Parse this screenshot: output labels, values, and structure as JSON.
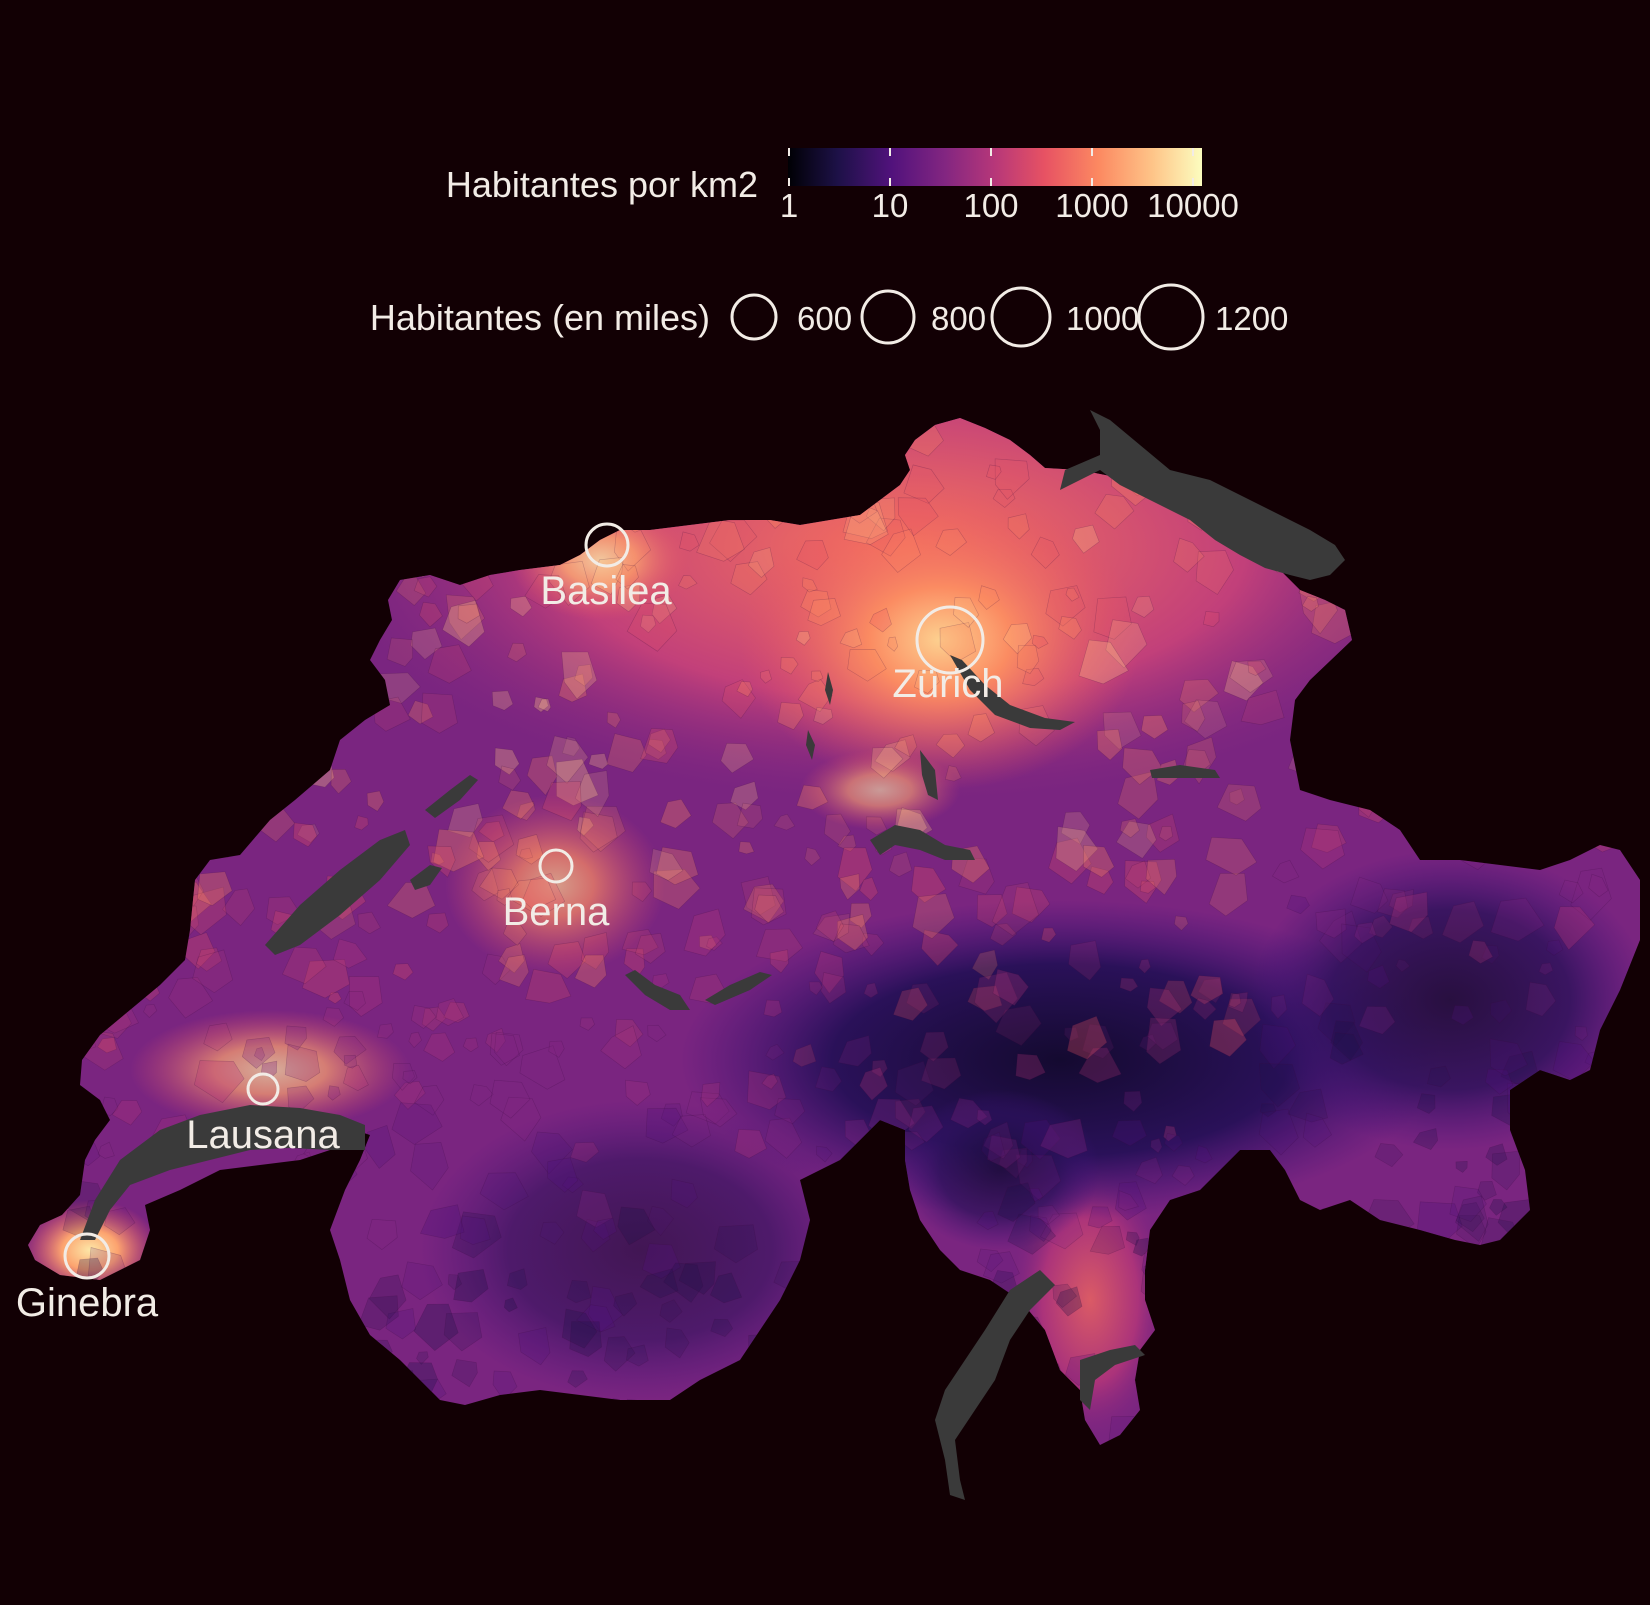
{
  "legend": {
    "density_title": "Habitantes por km2",
    "density_ticks": [
      "1",
      "10",
      "100",
      "1000",
      "10000"
    ],
    "density_colors": [
      "#000004",
      "#1d1147",
      "#51127c",
      "#832681",
      "#b73779",
      "#e75263",
      "#fc8961",
      "#fec488",
      "#fcfdbf"
    ],
    "size_title": "Habitantes (en miles)",
    "size_values": [
      "600",
      "800",
      "1000",
      "1200"
    ]
  },
  "map": {
    "background_color": "#120004",
    "lake_color": "#3a3a3a",
    "cities": [
      {
        "name": "Basilea",
        "population_thousands": 540
      },
      {
        "name": "Zürich",
        "population_thousands": 1300
      },
      {
        "name": "Berna",
        "population_thousands": 400
      },
      {
        "name": "Lausana",
        "population_thousands": 420
      },
      {
        "name": "Ginebra",
        "population_thousands": 600
      }
    ]
  }
}
